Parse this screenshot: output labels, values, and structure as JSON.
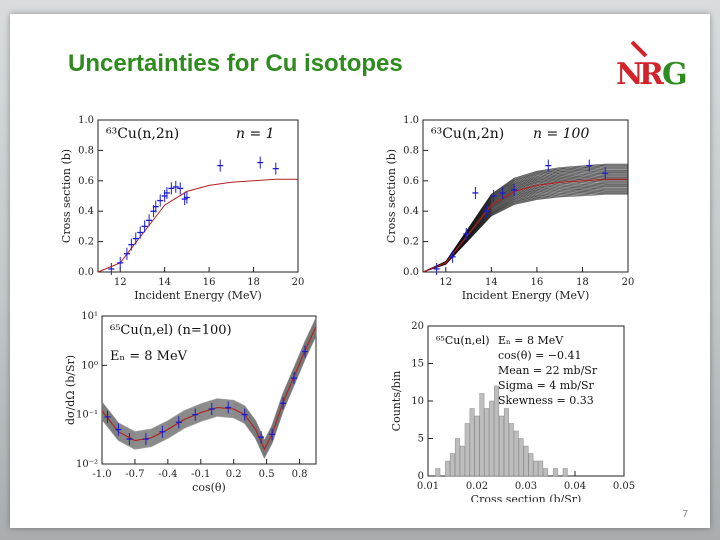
{
  "slide": {
    "title": "Uncertainties for Cu isotopes",
    "logo_text": "NRG",
    "page_number": "7"
  },
  "colors": {
    "title_green": "#2e8b1d",
    "logo_red": "#d2232a",
    "logo_green": "#2e8b1d",
    "data_blue": "#1a1ad0",
    "fit_red": "#b02020"
  },
  "chart_data": [
    {
      "type": "scatter",
      "panel": "top-left",
      "annotation": "⁶³Cu(n,2n)",
      "label_n": "n = 1",
      "xlabel": "Incident Energy (MeV)",
      "ylabel": "Cross section (b)",
      "xlim": [
        11,
        20
      ],
      "ylim": [
        0.0,
        1.0
      ],
      "xticks": [
        "12",
        "14",
        "16",
        "18",
        "20"
      ],
      "yticks": [
        "0.0",
        "0.2",
        "0.4",
        "0.6",
        "0.8",
        "1.0"
      ],
      "points": [
        [
          11.6,
          0.02
        ],
        [
          12.0,
          0.06
        ],
        [
          12.3,
          0.12
        ],
        [
          12.5,
          0.18
        ],
        [
          12.7,
          0.22
        ],
        [
          12.9,
          0.26
        ],
        [
          13.1,
          0.3
        ],
        [
          13.3,
          0.34
        ],
        [
          13.5,
          0.4
        ],
        [
          13.6,
          0.43
        ],
        [
          13.8,
          0.47
        ],
        [
          14.0,
          0.5
        ],
        [
          14.1,
          0.52
        ],
        [
          14.3,
          0.55
        ],
        [
          14.5,
          0.56
        ],
        [
          14.7,
          0.55
        ],
        [
          14.9,
          0.48
        ],
        [
          15.0,
          0.49
        ],
        [
          16.5,
          0.7
        ],
        [
          18.3,
          0.72
        ],
        [
          19.0,
          0.68
        ]
      ],
      "curve": [
        [
          11.0,
          0.0
        ],
        [
          12.0,
          0.06
        ],
        [
          13.0,
          0.25
        ],
        [
          14.0,
          0.44
        ],
        [
          15.0,
          0.53
        ],
        [
          16.0,
          0.57
        ],
        [
          17.0,
          0.59
        ],
        [
          18.0,
          0.6
        ],
        [
          19.0,
          0.61
        ],
        [
          20.0,
          0.61
        ]
      ]
    },
    {
      "type": "line",
      "panel": "top-right",
      "annotation": "⁶³Cu(n,2n)",
      "label_n": "n = 100",
      "xlabel": "Incident Energy (MeV)",
      "ylabel": "Cross section (b)",
      "xlim": [
        11,
        20
      ],
      "ylim": [
        0.0,
        1.0
      ],
      "xticks": [
        "12",
        "14",
        "16",
        "18",
        "20"
      ],
      "yticks": [
        "0.0",
        "0.2",
        "0.4",
        "0.6",
        "0.8",
        "1.0"
      ],
      "band": {
        "center": [
          [
            11.0,
            0.0
          ],
          [
            12.0,
            0.06
          ],
          [
            13.0,
            0.25
          ],
          [
            14.0,
            0.44
          ],
          [
            15.0,
            0.53
          ],
          [
            16.0,
            0.57
          ],
          [
            17.0,
            0.59
          ],
          [
            18.0,
            0.6
          ],
          [
            19.0,
            0.61
          ],
          [
            20.0,
            0.61
          ]
        ],
        "spread": 0.1
      },
      "points": [
        [
          11.6,
          0.02
        ],
        [
          12.3,
          0.1
        ],
        [
          12.9,
          0.25
        ],
        [
          13.3,
          0.52
        ],
        [
          13.8,
          0.4
        ],
        [
          14.1,
          0.5
        ],
        [
          14.5,
          0.52
        ],
        [
          15.0,
          0.54
        ],
        [
          16.5,
          0.7
        ],
        [
          18.3,
          0.7
        ],
        [
          19.0,
          0.65
        ]
      ]
    },
    {
      "type": "line",
      "panel": "bottom-left",
      "annotation": "⁶⁵Cu(n,el) (n=100)",
      "energy_label": "Eₙ = 8 MeV",
      "xlabel": "cos(θ)",
      "ylabel": "dσ/dΩ (b/Sr)",
      "xlim": [
        -1.0,
        0.95
      ],
      "yscale": "log",
      "ylim": [
        0.01,
        10
      ],
      "xticks": [
        "-1.0",
        "-0.7",
        "-0.4",
        "-0.1",
        "0.2",
        "0.5",
        "0.8"
      ],
      "yticks": [
        "10⁻²",
        "10⁻¹",
        "10⁰",
        "10¹"
      ],
      "curve": [
        [
          -1.0,
          0.12
        ],
        [
          -0.85,
          0.045
        ],
        [
          -0.7,
          0.03
        ],
        [
          -0.55,
          0.034
        ],
        [
          -0.4,
          0.05
        ],
        [
          -0.25,
          0.08
        ],
        [
          -0.1,
          0.11
        ],
        [
          0.05,
          0.14
        ],
        [
          0.2,
          0.13
        ],
        [
          0.3,
          0.1
        ],
        [
          0.4,
          0.05
        ],
        [
          0.48,
          0.02
        ],
        [
          0.55,
          0.04
        ],
        [
          0.65,
          0.18
        ],
        [
          0.75,
          0.6
        ],
        [
          0.85,
          2.0
        ],
        [
          0.95,
          6.0
        ]
      ],
      "points": [
        [
          -0.95,
          0.09
        ],
        [
          -0.85,
          0.05
        ],
        [
          -0.75,
          0.032
        ],
        [
          -0.6,
          0.032
        ],
        [
          -0.45,
          0.045
        ],
        [
          -0.3,
          0.07
        ],
        [
          -0.15,
          0.1
        ],
        [
          0.0,
          0.13
        ],
        [
          0.15,
          0.14
        ],
        [
          0.3,
          0.1
        ],
        [
          0.45,
          0.035
        ],
        [
          0.55,
          0.04
        ],
        [
          0.65,
          0.17
        ],
        [
          0.75,
          0.55
        ],
        [
          0.85,
          1.9
        ]
      ]
    },
    {
      "type": "bar",
      "panel": "bottom-right",
      "annotation": "⁶⁵Cu(n,el)",
      "stats": [
        "Eₙ = 8 MeV",
        "cos(θ) = −0.41",
        "Mean = 22 mb/Sr",
        "Sigma = 4 mb/Sr",
        "Skewness = 0.33"
      ],
      "xlabel": "Cross section (b/Sr)",
      "ylabel": "Counts/bin",
      "xlim": [
        0.01,
        0.05
      ],
      "ylim": [
        0,
        20
      ],
      "xticks": [
        "0.01",
        "0.02",
        "0.03",
        "0.04",
        "0.05"
      ],
      "yticks": [
        "0",
        "5",
        "10",
        "15",
        "20"
      ],
      "bins": [
        [
          0.012,
          1
        ],
        [
          0.014,
          2
        ],
        [
          0.015,
          3
        ],
        [
          0.016,
          5
        ],
        [
          0.017,
          4
        ],
        [
          0.018,
          7
        ],
        [
          0.019,
          9
        ],
        [
          0.02,
          8
        ],
        [
          0.021,
          11
        ],
        [
          0.022,
          9
        ],
        [
          0.023,
          10
        ],
        [
          0.024,
          12
        ],
        [
          0.025,
          8
        ],
        [
          0.026,
          9
        ],
        [
          0.027,
          7
        ],
        [
          0.028,
          6
        ],
        [
          0.029,
          5
        ],
        [
          0.03,
          4
        ],
        [
          0.031,
          3
        ],
        [
          0.032,
          2
        ],
        [
          0.033,
          2
        ],
        [
          0.034,
          1
        ],
        [
          0.036,
          1
        ],
        [
          0.038,
          1
        ]
      ]
    }
  ]
}
